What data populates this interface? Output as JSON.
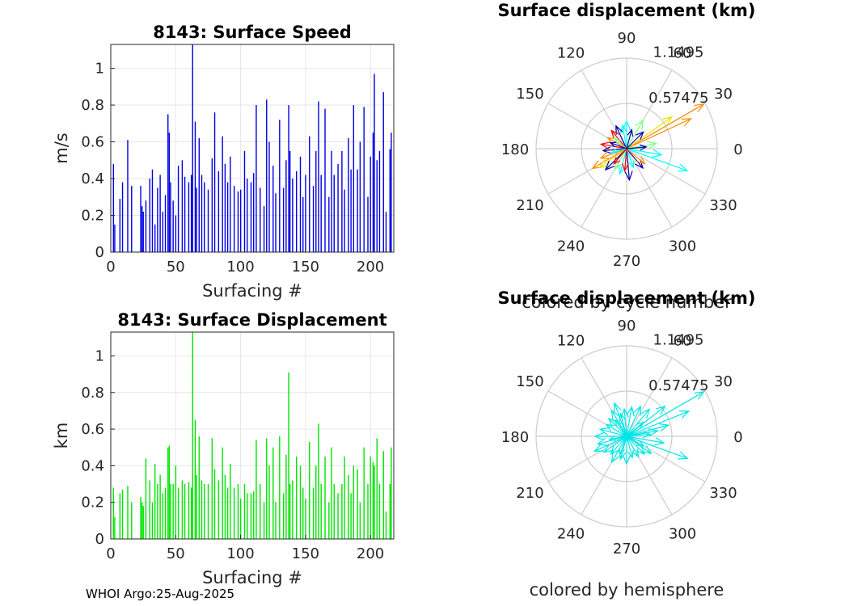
{
  "footer": "WHOI Argo:25-Aug-2025",
  "chart_data": [
    {
      "type": "bar",
      "title": "8143: Surface Speed",
      "xlabel": "Surfacing #",
      "ylabel": "m/s",
      "xlim": [
        0,
        218
      ],
      "ylim": [
        0,
        1.13
      ],
      "xticks": [
        0,
        50,
        100,
        150,
        200
      ],
      "yticks": [
        0,
        0.2,
        0.4,
        0.6,
        0.8,
        1
      ],
      "color": "#0000e6",
      "x": [
        2,
        3,
        7,
        9,
        13,
        16,
        23,
        24,
        25,
        27,
        30,
        32,
        34,
        36,
        38,
        40,
        42,
        44,
        45,
        46,
        48,
        50,
        52,
        55,
        57,
        60,
        62,
        63,
        65,
        66,
        68,
        70,
        72,
        75,
        78,
        80,
        83,
        86,
        88,
        90,
        92,
        95,
        98,
        100,
        103,
        105,
        108,
        110,
        112,
        115,
        118,
        120,
        122,
        125,
        127,
        130,
        133,
        135,
        137,
        138,
        140,
        143,
        146,
        148,
        150,
        153,
        156,
        158,
        160,
        162,
        165,
        168,
        170,
        172,
        175,
        178,
        180,
        183,
        185,
        187,
        190,
        192,
        195,
        198,
        200,
        202,
        203,
        205,
        207,
        210,
        212,
        215,
        216
      ],
      "values": [
        0.48,
        0.15,
        0.29,
        0.38,
        0.61,
        0.36,
        0.36,
        0.25,
        0.22,
        0.28,
        0.4,
        0.45,
        0.15,
        0.35,
        0.42,
        0.22,
        0.31,
        0.75,
        0.65,
        0.38,
        0.28,
        0.2,
        0.47,
        0.5,
        0.41,
        0.38,
        0.42,
        1.13,
        0.71,
        0.35,
        0.62,
        0.42,
        0.38,
        0.34,
        0.51,
        0.76,
        0.44,
        0.63,
        0.48,
        0.38,
        0.52,
        0.36,
        0.33,
        0.34,
        0.55,
        0.4,
        0.38,
        0.43,
        0.8,
        0.35,
        0.25,
        0.83,
        0.6,
        0.47,
        0.32,
        0.72,
        0.35,
        0.5,
        0.8,
        0.55,
        0.4,
        0.44,
        0.52,
        0.3,
        0.42,
        0.63,
        0.36,
        0.55,
        0.82,
        0.42,
        0.78,
        0.3,
        0.55,
        0.42,
        0.48,
        0.55,
        0.34,
        0.62,
        0.45,
        0.8,
        0.45,
        0.6,
        0.79,
        0.3,
        0.52,
        0.65,
        0.97,
        0.5,
        0.55,
        0.87,
        0.22,
        0.56,
        0.65
      ]
    },
    {
      "type": "polar",
      "title": "Surface displacement (km)",
      "subtitle": "colored by cycle number",
      "rmax": 1.1495,
      "rings": [
        "0.57475",
        "1.1495"
      ],
      "angle_labels": [
        "0",
        "30",
        "60",
        "90",
        "120",
        "150",
        "180",
        "210",
        "240",
        "270",
        "300",
        "330"
      ],
      "vectors": [
        {
          "angle": 30,
          "r": 1.13,
          "color": "#ff8c00"
        },
        {
          "angle": 25,
          "r": 0.9,
          "color": "#ff8c00"
        },
        {
          "angle": 35,
          "r": 0.7,
          "color": "#e6e600"
        },
        {
          "angle": 340,
          "r": 0.82,
          "color": "#00ffff"
        },
        {
          "angle": 350,
          "r": 0.45,
          "color": "#00ffff"
        },
        {
          "angle": 10,
          "r": 0.38,
          "color": "#80ff80"
        },
        {
          "angle": 60,
          "r": 0.42,
          "color": "#80ff80"
        },
        {
          "angle": 90,
          "r": 0.35,
          "color": "#00ffff"
        },
        {
          "angle": 100,
          "r": 0.3,
          "color": "#00ffff"
        },
        {
          "angle": 115,
          "r": 0.32,
          "color": "#0000aa"
        },
        {
          "angle": 130,
          "r": 0.3,
          "color": "#ff0000"
        },
        {
          "angle": 150,
          "r": 0.28,
          "color": "#ff8c00"
        },
        {
          "angle": 170,
          "r": 0.33,
          "color": "#ff0000"
        },
        {
          "angle": 185,
          "r": 0.3,
          "color": "#0000aa"
        },
        {
          "angle": 200,
          "r": 0.35,
          "color": "#ff8c00"
        },
        {
          "angle": 210,
          "r": 0.5,
          "color": "#ff8c00"
        },
        {
          "angle": 215,
          "r": 0.42,
          "color": "#e6e600"
        },
        {
          "angle": 225,
          "r": 0.38,
          "color": "#0000aa"
        },
        {
          "angle": 240,
          "r": 0.3,
          "color": "#80ff80"
        },
        {
          "angle": 255,
          "r": 0.33,
          "color": "#00ffff"
        },
        {
          "angle": 275,
          "r": 0.4,
          "color": "#0000aa"
        },
        {
          "angle": 290,
          "r": 0.25,
          "color": "#00ffff"
        },
        {
          "angle": 310,
          "r": 0.32,
          "color": "#0000aa"
        },
        {
          "angle": 320,
          "r": 0.3,
          "color": "#ff8c00"
        },
        {
          "angle": 45,
          "r": 0.3,
          "color": "#0000aa"
        },
        {
          "angle": 75,
          "r": 0.25,
          "color": "#0000aa"
        },
        {
          "angle": 140,
          "r": 0.2,
          "color": "#80ff80"
        },
        {
          "angle": 195,
          "r": 0.2,
          "color": "#00ffff"
        },
        {
          "angle": 5,
          "r": 0.25,
          "color": "#0000aa"
        },
        {
          "angle": 265,
          "r": 0.28,
          "color": "#ff0000"
        },
        {
          "angle": 160,
          "r": 0.22,
          "color": "#0000aa"
        },
        {
          "angle": 230,
          "r": 0.25,
          "color": "#ff0000"
        }
      ]
    },
    {
      "type": "bar",
      "title": "8143: Surface Displacement",
      "xlabel": "Surfacing #",
      "ylabel": "km",
      "xlim": [
        0,
        218
      ],
      "ylim": [
        0,
        1.13
      ],
      "xticks": [
        0,
        50,
        100,
        150,
        200
      ],
      "yticks": [
        0,
        0.2,
        0.4,
        0.6,
        0.8,
        1
      ],
      "color": "#00e600",
      "x": [
        2,
        3,
        7,
        9,
        13,
        16,
        23,
        24,
        25,
        27,
        30,
        32,
        34,
        36,
        38,
        40,
        42,
        44,
        45,
        46,
        48,
        50,
        52,
        55,
        57,
        60,
        62,
        63,
        65,
        66,
        68,
        70,
        72,
        75,
        78,
        80,
        83,
        86,
        88,
        90,
        92,
        95,
        98,
        100,
        103,
        105,
        108,
        110,
        112,
        115,
        118,
        120,
        122,
        125,
        127,
        130,
        133,
        135,
        137,
        138,
        140,
        143,
        146,
        148,
        150,
        153,
        156,
        158,
        160,
        162,
        165,
        168,
        170,
        172,
        175,
        178,
        180,
        183,
        185,
        187,
        190,
        192,
        195,
        198,
        200,
        202,
        203,
        205,
        207,
        210,
        212,
        215,
        216
      ],
      "values": [
        0.28,
        0.12,
        0.25,
        0.27,
        0.29,
        0.2,
        0.23,
        0.2,
        0.18,
        0.44,
        0.32,
        0.2,
        0.41,
        0.3,
        0.35,
        0.25,
        0.28,
        0.5,
        0.51,
        0.3,
        0.3,
        0.4,
        0.28,
        0.32,
        0.3,
        0.31,
        0.28,
        1.13,
        0.65,
        0.35,
        0.56,
        0.32,
        0.3,
        0.3,
        0.55,
        0.38,
        0.32,
        0.5,
        0.35,
        0.28,
        0.41,
        0.28,
        0.3,
        0.22,
        0.3,
        0.25,
        0.25,
        0.26,
        0.54,
        0.3,
        0.2,
        0.55,
        0.4,
        0.5,
        0.2,
        0.56,
        0.25,
        0.46,
        0.91,
        0.3,
        0.32,
        0.45,
        0.4,
        0.28,
        0.22,
        0.53,
        0.28,
        0.4,
        0.63,
        0.3,
        0.45,
        0.2,
        0.5,
        0.3,
        0.25,
        0.3,
        0.45,
        0.35,
        0.25,
        0.4,
        0.38,
        0.2,
        0.5,
        0.3,
        0.45,
        0.42,
        0.4,
        0.55,
        0.3,
        0.48,
        0.15,
        0.3,
        0.5
      ]
    },
    {
      "type": "polar",
      "title": "Surface displacement (km)",
      "subtitle": "colored by hemisphere",
      "rmax": 1.1495,
      "rings": [
        "0.57475",
        "1.1495"
      ],
      "angle_labels": [
        "0",
        "30",
        "60",
        "90",
        "120",
        "150",
        "180",
        "210",
        "240",
        "270",
        "300",
        "330"
      ],
      "color": "#00e6e6",
      "vectors": [
        {
          "angle": 30,
          "r": 1.13
        },
        {
          "angle": 22,
          "r": 0.85
        },
        {
          "angle": 38,
          "r": 0.62
        },
        {
          "angle": 340,
          "r": 0.82
        },
        {
          "angle": 350,
          "r": 0.48
        },
        {
          "angle": 10,
          "r": 0.4
        },
        {
          "angle": 50,
          "r": 0.45
        },
        {
          "angle": 65,
          "r": 0.42
        },
        {
          "angle": 80,
          "r": 0.38
        },
        {
          "angle": 95,
          "r": 0.35
        },
        {
          "angle": 105,
          "r": 0.3
        },
        {
          "angle": 120,
          "r": 0.38
        },
        {
          "angle": 135,
          "r": 0.32
        },
        {
          "angle": 150,
          "r": 0.3
        },
        {
          "angle": 165,
          "r": 0.35
        },
        {
          "angle": 180,
          "r": 0.4
        },
        {
          "angle": 195,
          "r": 0.38
        },
        {
          "angle": 205,
          "r": 0.45
        },
        {
          "angle": 215,
          "r": 0.35
        },
        {
          "angle": 228,
          "r": 0.3
        },
        {
          "angle": 240,
          "r": 0.38
        },
        {
          "angle": 255,
          "r": 0.3
        },
        {
          "angle": 270,
          "r": 0.35
        },
        {
          "angle": 285,
          "r": 0.28
        },
        {
          "angle": 300,
          "r": 0.3
        },
        {
          "angle": 315,
          "r": 0.32
        },
        {
          "angle": 325,
          "r": 0.38
        },
        {
          "angle": 5,
          "r": 0.3
        },
        {
          "angle": 40,
          "r": 0.28
        },
        {
          "angle": 125,
          "r": 0.25
        },
        {
          "angle": 190,
          "r": 0.22
        },
        {
          "angle": 250,
          "r": 0.25
        },
        {
          "angle": 330,
          "r": 0.25
        },
        {
          "angle": 15,
          "r": 0.55
        },
        {
          "angle": 110,
          "r": 0.45
        }
      ]
    }
  ]
}
